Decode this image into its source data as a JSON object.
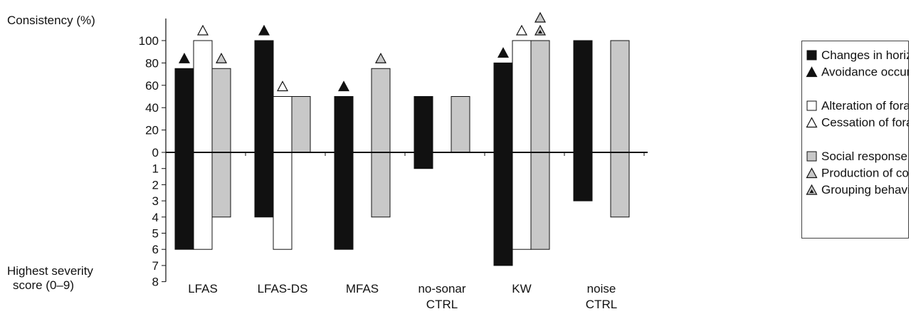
{
  "chart_data": {
    "type": "bar",
    "ylabel_top": "Consistency (%)",
    "ylabel_bottom": [
      "Highest severity",
      "score (0–9)"
    ],
    "categories": [
      [
        "LFAS"
      ],
      [
        "LFAS-DS"
      ],
      [
        "MFAS"
      ],
      [
        "no-sonar",
        "CTRL"
      ],
      [
        "KW"
      ],
      [
        "noise",
        "CTRL"
      ]
    ],
    "consistency_ticks": [
      0,
      20,
      40,
      60,
      80,
      100
    ],
    "severity_ticks": [
      1,
      2,
      3,
      4,
      5,
      6,
      7,
      8
    ],
    "ylim_consistency": [
      0,
      100
    ],
    "ylim_severity": [
      0,
      8
    ],
    "series": [
      {
        "name": "Changes in horizontal movement",
        "color": "#111111",
        "consistency": [
          75,
          100,
          50,
          50,
          80,
          100
        ],
        "severity": [
          6,
          4,
          6,
          1,
          7,
          3
        ]
      },
      {
        "name": "Alteration of foraging/resting",
        "color": "#ffffff",
        "consistency": [
          100,
          50,
          null,
          null,
          100,
          null
        ],
        "severity": [
          6,
          6,
          null,
          null,
          6,
          null
        ]
      },
      {
        "name": "Social response",
        "color": "#c8c8c8",
        "consistency": [
          75,
          50,
          75,
          50,
          100,
          100
        ],
        "severity": [
          4,
          0,
          4,
          0,
          6,
          4
        ]
      }
    ],
    "markers": [
      {
        "category": "LFAS",
        "series": "Changes in horizontal movement",
        "symbol": "avoidance"
      },
      {
        "category": "LFAS",
        "series": "Alteration of foraging/resting",
        "symbol": "cessation"
      },
      {
        "category": "LFAS",
        "series": "Social response",
        "symbol": "codas"
      },
      {
        "category": "LFAS-DS",
        "series": "Changes in horizontal movement",
        "symbol": "avoidance"
      },
      {
        "category": "LFAS-DS",
        "series": "Alteration of foraging/resting",
        "symbol": "cessation"
      },
      {
        "category": "MFAS",
        "series": "Changes in horizontal movement",
        "symbol": "avoidance"
      },
      {
        "category": "MFAS",
        "series": "Social response",
        "symbol": "codas"
      },
      {
        "category": "KW",
        "series": "Changes in horizontal movement",
        "symbol": "avoidance"
      },
      {
        "category": "KW",
        "series": "Alteration of foraging/resting",
        "symbol": "cessation"
      },
      {
        "category": "KW",
        "series": "Social response",
        "symbol": "grouping"
      },
      {
        "category": "KW",
        "series": "Social response",
        "symbol": "codas"
      }
    ],
    "legend": {
      "position": "right",
      "groups": [
        [
          {
            "symbol": "black-square",
            "label": "Changes in horizontal movement"
          },
          {
            "symbol": "avoidance",
            "label": "Avoidance occurred"
          }
        ],
        [
          {
            "symbol": "white-square",
            "label": "Alteration of foraging/resting"
          },
          {
            "symbol": "cessation",
            "label": "Cessation of foraging occurred"
          }
        ],
        [
          {
            "symbol": "gray-square",
            "label": "Social response"
          },
          {
            "symbol": "codas",
            "label": "Production of codas occurred"
          },
          {
            "symbol": "grouping",
            "label": "Grouping behavior occurred"
          }
        ]
      ]
    },
    "symbol_styles": {
      "avoidance": {
        "fill": "#111111",
        "stroke": "#111111"
      },
      "cessation": {
        "fill": "#ffffff",
        "stroke": "#111111"
      },
      "codas": {
        "fill": "#c8c8c8",
        "stroke": "#111111"
      },
      "grouping": {
        "fill": "#c8c8c8",
        "stroke": "#111111",
        "inner": "#111111"
      }
    }
  }
}
